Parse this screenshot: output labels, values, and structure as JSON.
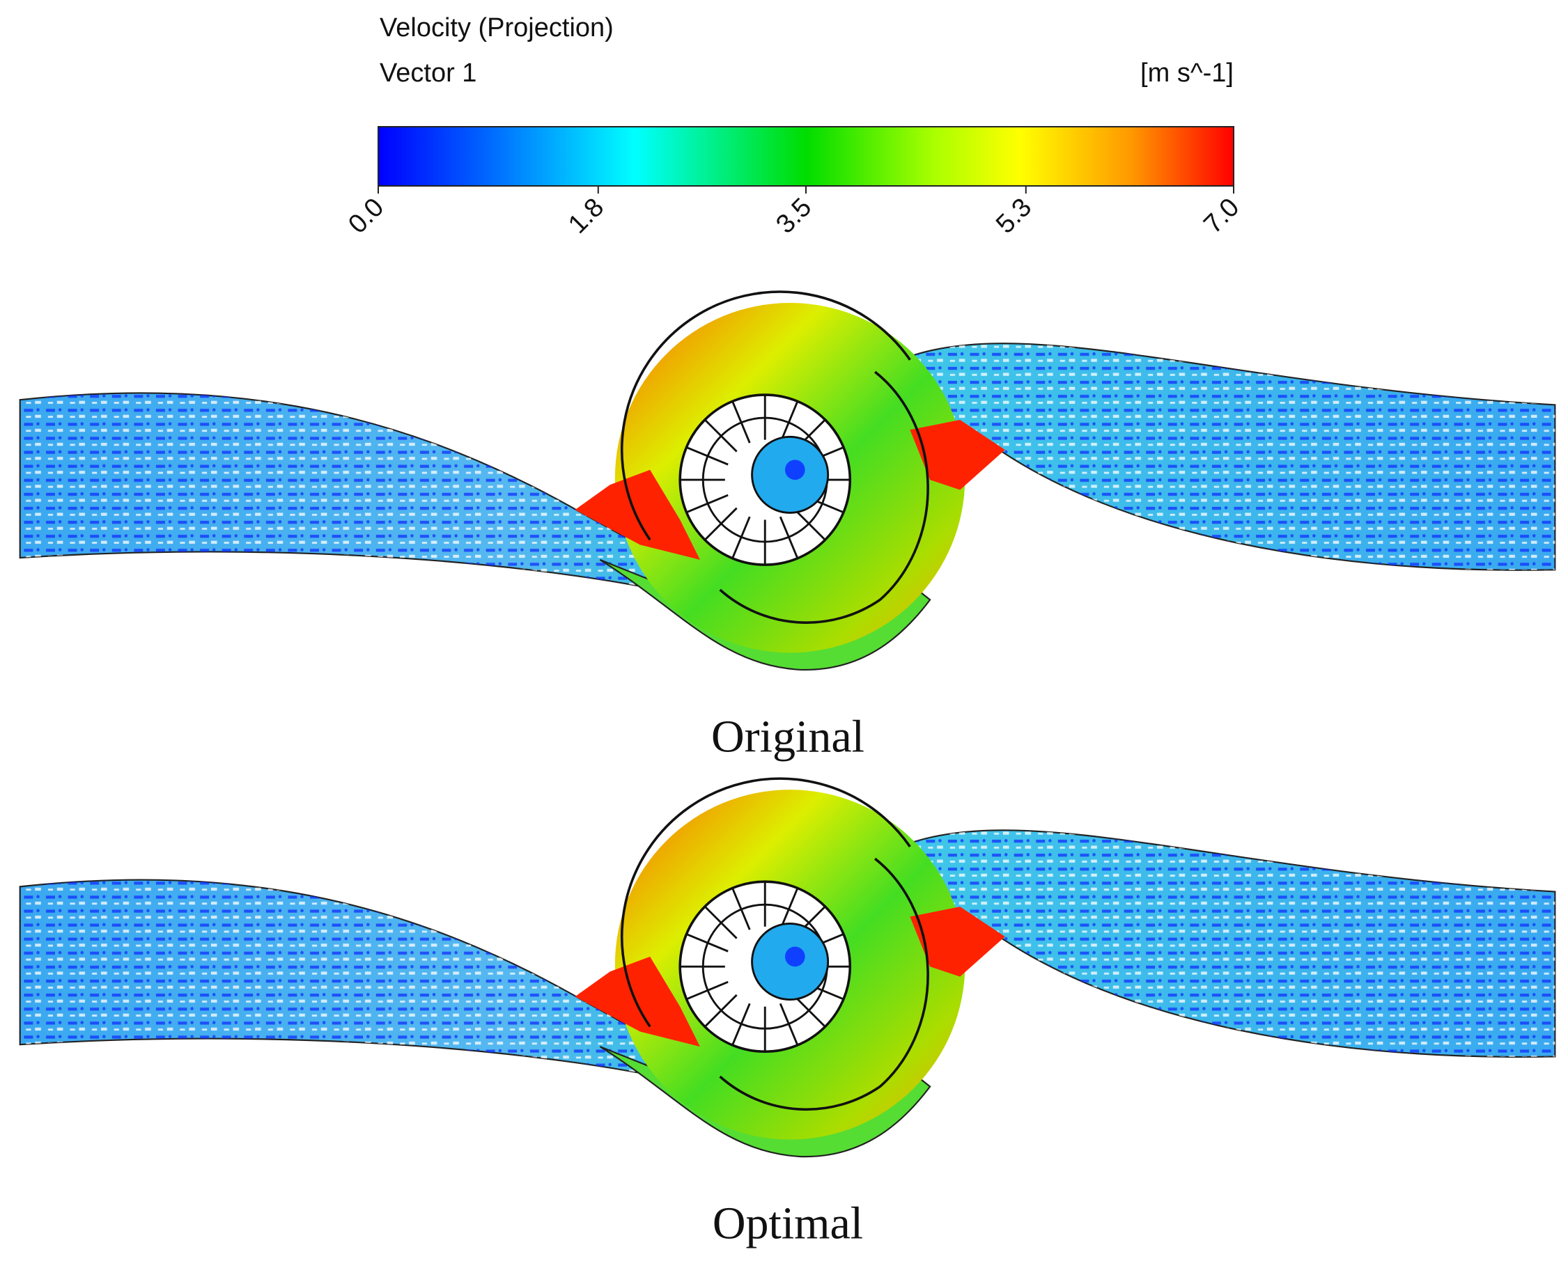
{
  "legend": {
    "title": "Velocity (Projection)",
    "subtitle": "Vector 1",
    "unit": "[m s^-1]",
    "range": [
      0,
      7
    ],
    "ticks": [
      {
        "value": 0,
        "label": "0.0"
      },
      1.8,
      3.5,
      5.3,
      {
        "value": 7,
        "label": "7.0"
      }
    ]
  },
  "panels": [
    {
      "label": "Original"
    },
    {
      "label": "Optimal"
    }
  ]
}
